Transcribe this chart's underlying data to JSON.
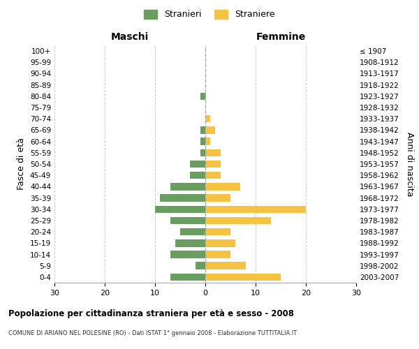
{
  "age_groups": [
    "0-4",
    "5-9",
    "10-14",
    "15-19",
    "20-24",
    "25-29",
    "30-34",
    "35-39",
    "40-44",
    "45-49",
    "50-54",
    "55-59",
    "60-64",
    "65-69",
    "70-74",
    "75-79",
    "80-84",
    "85-89",
    "90-94",
    "95-99",
    "100+"
  ],
  "birth_years": [
    "2003-2007",
    "1998-2002",
    "1993-1997",
    "1988-1992",
    "1983-1987",
    "1978-1982",
    "1973-1977",
    "1968-1972",
    "1963-1967",
    "1958-1962",
    "1953-1957",
    "1948-1952",
    "1943-1947",
    "1938-1942",
    "1933-1937",
    "1928-1932",
    "1923-1927",
    "1918-1922",
    "1913-1917",
    "1908-1912",
    "≤ 1907"
  ],
  "males": [
    7,
    2,
    7,
    6,
    5,
    7,
    10,
    9,
    7,
    3,
    3,
    1,
    1,
    1,
    0,
    0,
    1,
    0,
    0,
    0,
    0
  ],
  "females": [
    15,
    8,
    5,
    6,
    5,
    13,
    20,
    5,
    7,
    3,
    3,
    3,
    1,
    2,
    1,
    0,
    0,
    0,
    0,
    0,
    0
  ],
  "male_color": "#6a9e5f",
  "female_color": "#f5c242",
  "grid_color": "#cccccc",
  "center_line_color": "#aaaaaa",
  "title": "Popolazione per cittadinanza straniera per età e sesso - 2008",
  "subtitle": "COMUNE DI ARIANO NEL POLESINE (RO) - Dati ISTAT 1° gennaio 2008 - Elaborazione TUTTITALIA.IT",
  "xlabel_left": "Maschi",
  "xlabel_right": "Femmine",
  "ylabel_left": "Fasce di età",
  "ylabel_right": "Anni di nascita",
  "legend_male": "Stranieri",
  "legend_female": "Straniere",
  "xlim": 30,
  "background_color": "#ffffff"
}
